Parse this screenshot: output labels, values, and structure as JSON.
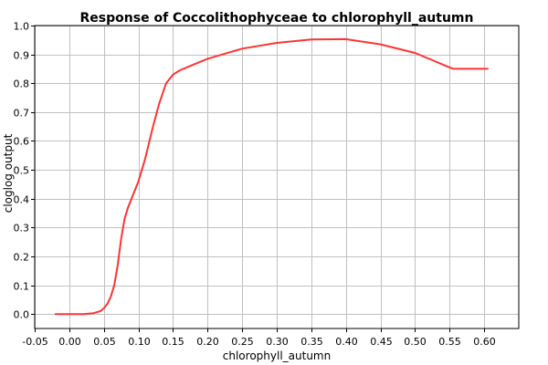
{
  "chart_data": {
    "type": "line",
    "title": "Response of Coccolithophyceae to chlorophyll_autumn",
    "xlabel": "chlorophyll_autumn",
    "ylabel": "cloglog output",
    "xlim": [
      -0.05,
      0.65
    ],
    "ylim": [
      -0.05,
      1.0
    ],
    "x_ticks": [
      -0.05,
      0.0,
      0.05,
      0.1,
      0.15,
      0.2,
      0.25,
      0.3,
      0.35,
      0.4,
      0.45,
      0.5,
      0.55,
      0.6
    ],
    "x_tick_labels": [
      "-0.05",
      "0.00",
      "0.05",
      "0.10",
      "0.15",
      "0.20",
      "0.25",
      "0.30",
      "0.35",
      "0.40",
      "0.45",
      "0.50",
      "0.55",
      "0.60"
    ],
    "y_ticks": [
      0.0,
      0.1,
      0.2,
      0.3,
      0.4,
      0.5,
      0.6,
      0.7,
      0.8,
      0.9,
      1.0
    ],
    "y_tick_labels": [
      "0.0",
      "0.1",
      "0.2",
      "0.3",
      "0.4",
      "0.5",
      "0.6",
      "0.7",
      "0.8",
      "0.9",
      "1.0"
    ],
    "grid": true,
    "series": [
      {
        "color": "#ff3333",
        "x": [
          -0.02,
          0.0,
          0.02,
          0.035,
          0.045,
          0.05,
          0.055,
          0.06,
          0.065,
          0.07,
          0.075,
          0.08,
          0.085,
          0.09,
          0.1,
          0.11,
          0.12,
          0.13,
          0.14,
          0.15,
          0.16,
          0.18,
          0.2,
          0.25,
          0.3,
          0.35,
          0.4,
          0.45,
          0.5,
          0.53,
          0.545,
          0.555,
          0.58,
          0.605
        ],
        "y": [
          0.0,
          0.0,
          0.0,
          0.003,
          0.01,
          0.02,
          0.035,
          0.06,
          0.1,
          0.17,
          0.26,
          0.33,
          0.37,
          0.4,
          0.46,
          0.54,
          0.64,
          0.73,
          0.8,
          0.83,
          0.845,
          0.865,
          0.885,
          0.92,
          0.94,
          0.952,
          0.953,
          0.935,
          0.905,
          0.875,
          0.86,
          0.85,
          0.85,
          0.85
        ]
      }
    ]
  }
}
